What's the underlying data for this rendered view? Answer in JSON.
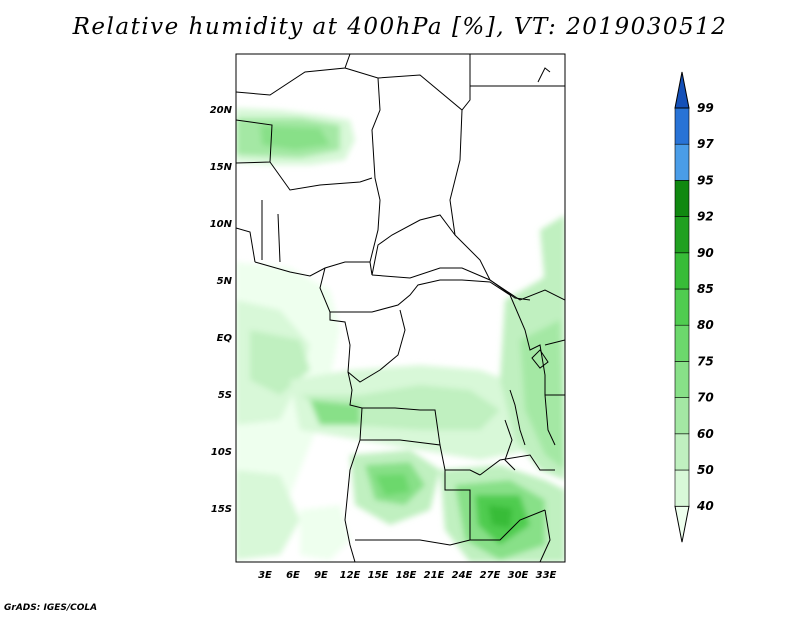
{
  "title": "Relative humidity at 400hPa [%], VT: 2019030512",
  "footer": "GrADS: IGES/COLA",
  "lat_labels": [
    "20N",
    "15N",
    "10N",
    "5N",
    "EQ",
    "5S",
    "10S",
    "15S"
  ],
  "lon_labels": [
    "3E",
    "6E",
    "9E",
    "12E",
    "15E",
    "18E",
    "21E",
    "24E",
    "27E",
    "30E",
    "33E"
  ],
  "colorbar": {
    "levels": [
      "40",
      "50",
      "60",
      "70",
      "75",
      "80",
      "85",
      "90",
      "92",
      "95",
      "97",
      "99"
    ],
    "colors": [
      "#eeffee",
      "#d8f8d8",
      "#c0f0c0",
      "#a4e8a4",
      "#88e088",
      "#6cd86c",
      "#50cc50",
      "#38bc38",
      "#20a020",
      "#108810",
      "#4a9de8",
      "#2873d6",
      "#1450b8"
    ]
  }
}
